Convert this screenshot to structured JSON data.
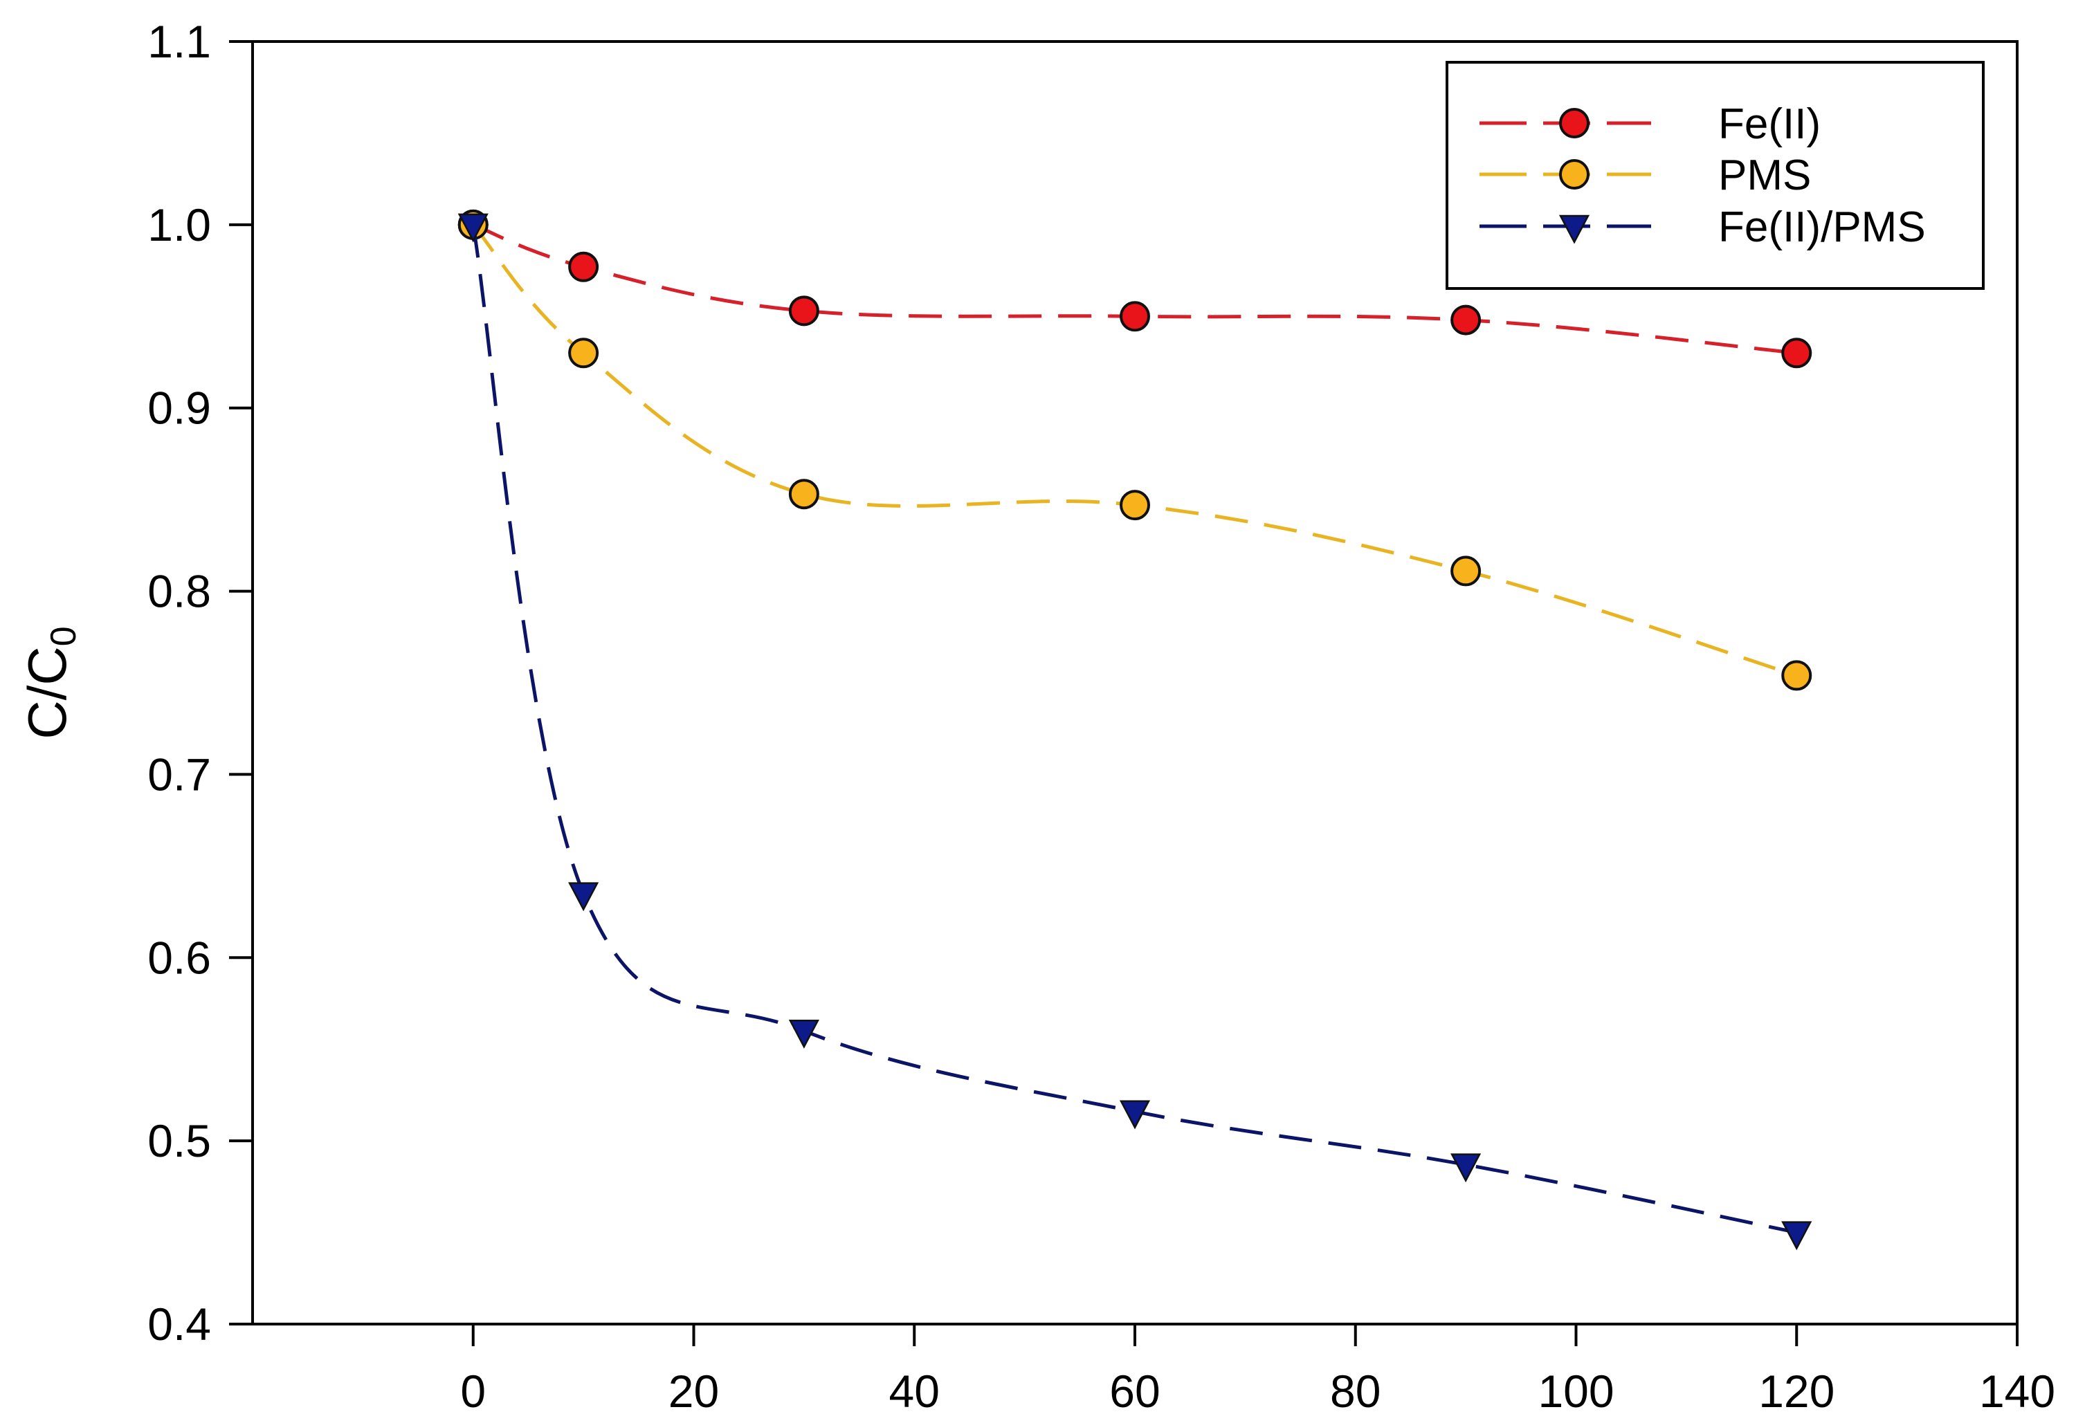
{
  "chart_data": {
    "type": "line",
    "title": "",
    "xlabel": "",
    "ylabel": "C/C0",
    "ylabel_main": "C/C",
    "ylabel_sub": "0",
    "xlim": [
      -20,
      140
    ],
    "ylim": [
      0.4,
      1.1
    ],
    "x_ticks": [
      0,
      20,
      40,
      60,
      80,
      100,
      120,
      140
    ],
    "y_ticks": [
      0.4,
      0.5,
      0.6,
      0.7,
      0.8,
      0.9,
      1.0,
      1.1
    ],
    "x_tick_labels": [
      "0",
      "20",
      "40",
      "60",
      "80",
      "100",
      "120",
      "140"
    ],
    "y_tick_labels": [
      "0.4",
      "0.5",
      "0.6",
      "0.7",
      "0.8",
      "0.9",
      "1.0",
      "1.1"
    ],
    "grid": false,
    "legend_position": "upper right",
    "x": [
      0,
      10,
      30,
      60,
      90,
      120
    ],
    "series": [
      {
        "name": "Fe(II)",
        "marker": "circle",
        "color": "#e8141a",
        "line_color": "#d6202a",
        "line_style": "dashed",
        "values": [
          1.0,
          0.977,
          0.953,
          0.95,
          0.948,
          0.93
        ]
      },
      {
        "name": "PMS",
        "marker": "circle",
        "color": "#f7b21c",
        "line_color": "#e8b422",
        "line_style": "dashed",
        "values": [
          1.0,
          0.93,
          0.853,
          0.847,
          0.811,
          0.754
        ]
      },
      {
        "name": "Fe(II)/PMS",
        "marker": "triangle-down",
        "color": "#0d1a8a",
        "line_color": "#0b1466",
        "line_style": "dashed",
        "values": [
          1.0,
          0.635,
          0.56,
          0.516,
          0.487,
          0.45
        ]
      }
    ]
  },
  "legend": {
    "items": [
      {
        "label": "Fe(II)"
      },
      {
        "label": "PMS"
      },
      {
        "label": "Fe(II)/PMS"
      }
    ]
  }
}
